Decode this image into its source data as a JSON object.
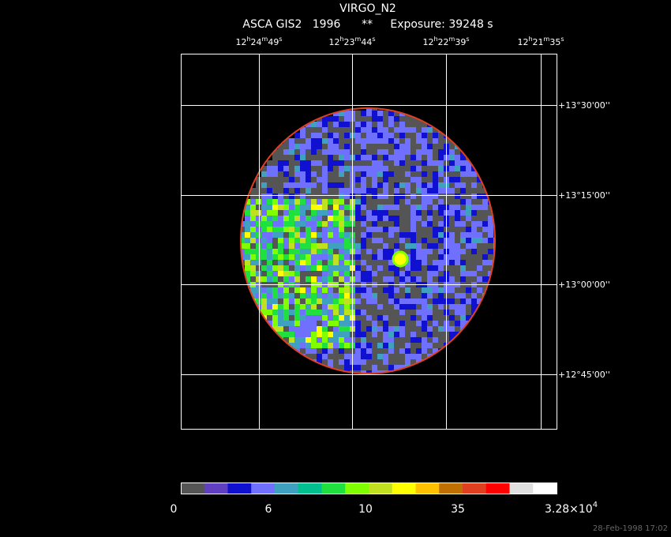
{
  "header": {
    "title": "VIRGO_N2",
    "subtitle": "ASCA GIS2   1996      **     Exposure: 39248 s"
  },
  "ra_labels": [
    [
      "12",
      "h",
      "24",
      "m",
      "49",
      "s"
    ],
    [
      "12",
      "h",
      "23",
      "m",
      "44",
      "s"
    ],
    [
      "12",
      "h",
      "22",
      "m",
      "39",
      "s"
    ],
    [
      "12",
      "h",
      "21",
      "m",
      "35",
      "s"
    ]
  ],
  "dec_labels": [
    "+13°30'00''",
    "+13°15'00''",
    "+13°00'00''",
    "+12°45'00''"
  ],
  "colorbar": {
    "colors": [
      "#555555",
      "#6040c0",
      "#1010d0",
      "#7070ff",
      "#40a0c0",
      "#00c090",
      "#20e040",
      "#80ff00",
      "#c0e020",
      "#ffff00",
      "#ffc000",
      "#c07000",
      "#e04020",
      "#ff0000",
      "#e0e0e0",
      "#ffffff"
    ],
    "labels": [
      "0",
      "6",
      "10",
      "35"
    ],
    "max_label": [
      "3.28×10",
      "4"
    ]
  },
  "footer": "28-Feb-1998 17:02"
}
